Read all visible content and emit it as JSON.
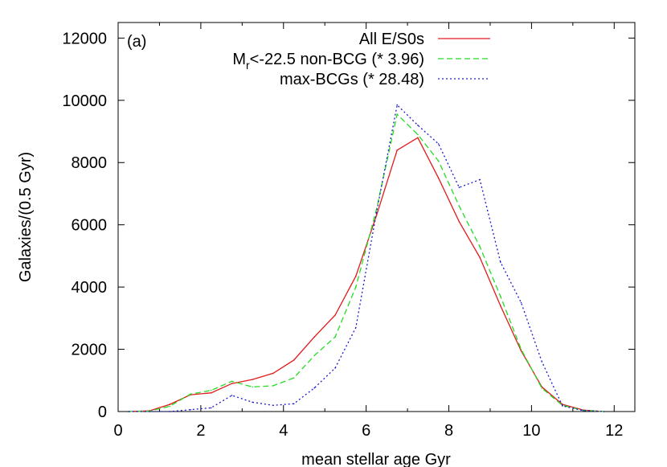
{
  "chart_data": {
    "type": "line",
    "panel_label": "(a)",
    "xlabel": "mean stellar age Gyr",
    "ylabel": "Galaxies/(0.5 Gyr)",
    "xlim": [
      0,
      12.5
    ],
    "ylim": [
      0,
      12500
    ],
    "xticks": [
      "0",
      "2",
      "4",
      "6",
      "8",
      "10",
      "12"
    ],
    "yticks": [
      "0",
      "2000",
      "4000",
      "6000",
      "8000",
      "10000",
      "12000"
    ],
    "grid": false,
    "legend_position": "top-right",
    "x": [
      0.25,
      0.75,
      1.25,
      1.75,
      2.25,
      2.75,
      3.25,
      3.75,
      4.25,
      4.75,
      5.25,
      5.75,
      6.25,
      6.75,
      7.25,
      7.75,
      8.25,
      8.75,
      9.25,
      9.75,
      10.25,
      10.75,
      11.25,
      11.75
    ],
    "series": [
      {
        "legend": {
          "main": "All E/S0s",
          "sub": "",
          "suffix": ""
        },
        "color": "#e31a1c",
        "dash": "none",
        "values": [
          0,
          20,
          230,
          540,
          600,
          900,
          1030,
          1230,
          1650,
          2400,
          3100,
          4350,
          6300,
          8400,
          8800,
          7500,
          6100,
          4950,
          3400,
          1950,
          790,
          230,
          50,
          0
        ]
      },
      {
        "legend": {
          "main": "M",
          "sub": "r",
          "suffix": "<-22.5 non-BCG (* 3.96)"
        },
        "color": "#22dd22",
        "dash": "7,4",
        "values": [
          0,
          10,
          170,
          560,
          680,
          970,
          790,
          830,
          1080,
          1800,
          2400,
          4000,
          6500,
          9550,
          8900,
          8050,
          6600,
          5300,
          3700,
          2000,
          750,
          200,
          40,
          0
        ]
      },
      {
        "legend": {
          "main": "max-BCGs (* 28.48)",
          "sub": "",
          "suffix": ""
        },
        "color": "#1a1acc",
        "dash": "2,3",
        "values": [
          0,
          0,
          0,
          60,
          120,
          520,
          300,
          200,
          250,
          760,
          1400,
          2700,
          6400,
          9850,
          9200,
          8600,
          7200,
          7450,
          4800,
          3500,
          1600,
          180,
          30,
          0
        ]
      }
    ]
  }
}
